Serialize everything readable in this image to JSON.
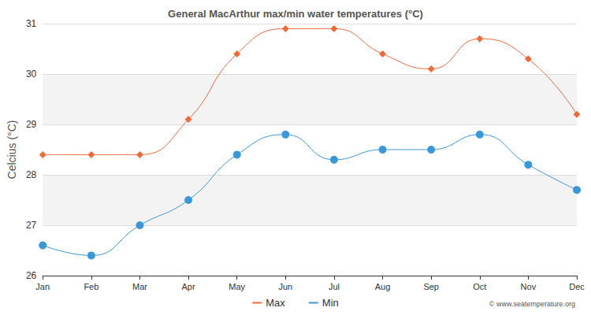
{
  "chart_data": {
    "type": "line",
    "title": "General MacArthur max/min water temperatures (°C)",
    "y_label": "Celcius (°C)",
    "categories": [
      "Jan",
      "Feb",
      "Mar",
      "Apr",
      "May",
      "Jun",
      "Jul",
      "Aug",
      "Sep",
      "Oct",
      "Nov",
      "Dec"
    ],
    "series": [
      {
        "name": "Max",
        "color": "#ef6a3a",
        "marker": "diamond",
        "line_style": "solid",
        "values": [
          28.4,
          28.4,
          28.4,
          29.1,
          30.4,
          30.9,
          30.9,
          30.4,
          30.1,
          30.7,
          30.3,
          29.2
        ]
      },
      {
        "name": "Min",
        "color": "#3a98d8",
        "marker": "circle",
        "line_style": "solid",
        "values": [
          26.6,
          26.4,
          27.0,
          27.5,
          28.4,
          28.8,
          28.3,
          28.5,
          28.5,
          28.8,
          28.2,
          27.7
        ]
      }
    ],
    "ylim": [
      26,
      31
    ],
    "yticks": [
      26,
      27,
      28,
      29,
      30,
      31
    ],
    "grid": true,
    "legend": "bottom",
    "annotations": [
      "© www.seatemperature.org"
    ]
  }
}
